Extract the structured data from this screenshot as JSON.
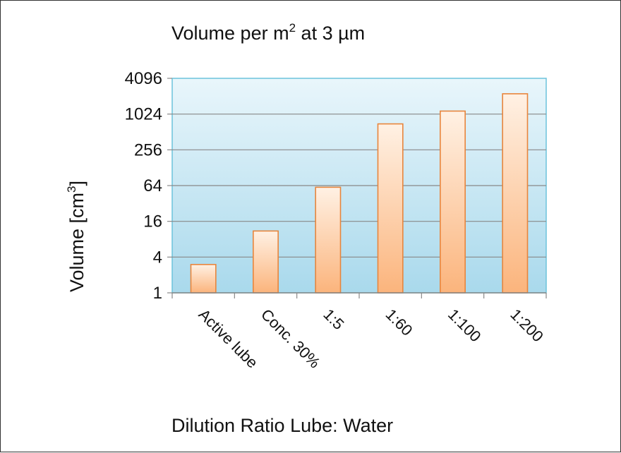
{
  "chart_data": {
    "type": "bar",
    "title_main": "Volume per m",
    "title_sup": "2",
    "title_rest": " at 3 µm",
    "ylabel_main": "Volume [cm",
    "ylabel_sup": "3",
    "ylabel_rest": "]",
    "xlabel": "Dilution Ratio Lube: Water",
    "yscale": "log2",
    "ylim": [
      1,
      4096
    ],
    "yticks": [
      1,
      4,
      16,
      64,
      256,
      1024,
      4096
    ],
    "ytick_labels": [
      "1",
      "4",
      "16",
      "64",
      "256",
      "1024",
      "4096"
    ],
    "categories": [
      "Active lube",
      "Conc. 30%",
      "1:5",
      "1:60",
      "1:100",
      "1:200"
    ],
    "values": [
      3,
      11,
      60,
      700,
      1150,
      2250
    ],
    "grid": true,
    "colors": {
      "plot_top": "#e9f6fb",
      "plot_bottom": "#a9d9ec",
      "plot_border": "#6cc3dc",
      "bar_top": "#fff1e4",
      "bar_bottom": "#fbb47c",
      "bar_border": "#e8853c",
      "grid": "#888888",
      "axis": "#888888"
    }
  }
}
